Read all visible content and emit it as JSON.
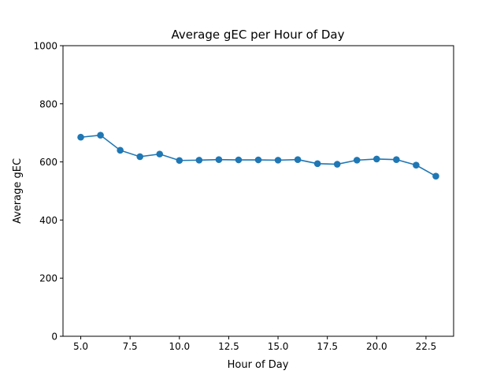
{
  "chart_data": {
    "type": "line",
    "title": "Average gEC per Hour of Day",
    "xlabel": "Hour of Day",
    "ylabel": "Average gEC",
    "xlim": [
      4.1,
      23.9
    ],
    "ylim": [
      0,
      1000
    ],
    "x_ticks": [
      5.0,
      7.5,
      10.0,
      12.5,
      15.0,
      17.5,
      20.0,
      22.5
    ],
    "x_tick_labels": [
      "5.0",
      "7.5",
      "10.0",
      "12.5",
      "15.0",
      "17.5",
      "20.0",
      "22.5"
    ],
    "y_ticks": [
      0,
      200,
      400,
      600,
      800,
      1000
    ],
    "y_tick_labels": [
      "0",
      "200",
      "400",
      "600",
      "800",
      "1000"
    ],
    "grid": false,
    "color": "#1f77b4",
    "series": [
      {
        "x": [
          5,
          6,
          7,
          8,
          9,
          10,
          11,
          12,
          13,
          14,
          15,
          16,
          17,
          18,
          19,
          20,
          21,
          22,
          23
        ],
        "y": [
          685,
          692,
          640,
          618,
          627,
          605,
          606,
          608,
          607,
          607,
          606,
          608,
          594,
          592,
          606,
          610,
          608,
          589,
          551
        ]
      }
    ]
  }
}
